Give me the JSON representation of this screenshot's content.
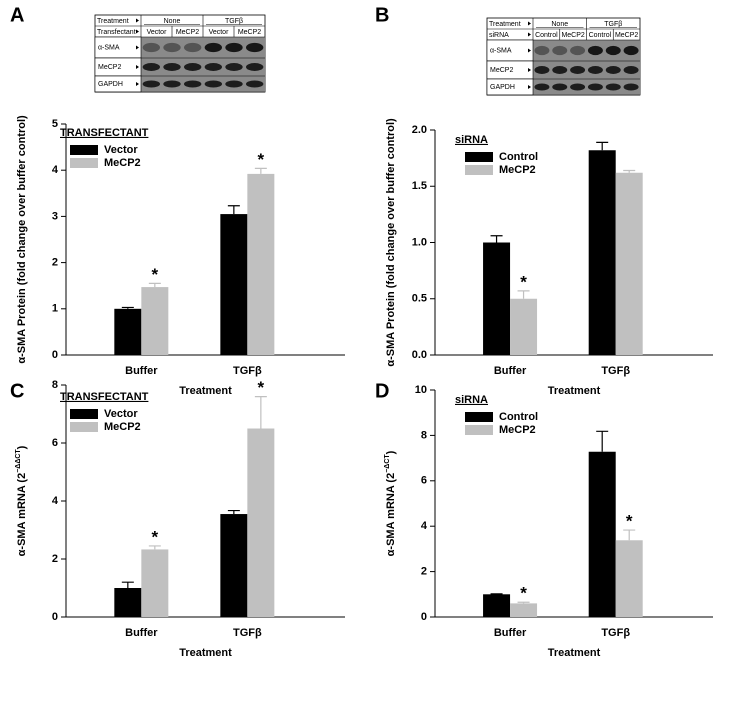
{
  "chart_data": [
    {
      "type": "bar",
      "panel": "A",
      "blot": {
        "header": [
          {
            "label": "Treatment",
            "groups": [
              "None",
              "TGFβ"
            ]
          },
          {
            "label": "Transfectant",
            "groups": [
              "Vector",
              "MeCP2",
              "Vector",
              "MeCP2"
            ]
          }
        ],
        "rows": [
          "α-SMA",
          "MeCP2",
          "GAPDH"
        ]
      },
      "ylabel": "α-SMA Protein (fold change over buffer control)",
      "xlabel": "Treatment",
      "legend_title": "TRANSFECTANT",
      "categories": [
        "Buffer",
        "TGFβ"
      ],
      "series": [
        {
          "name": "Vector",
          "color": "#000000",
          "values": [
            1.0,
            3.05
          ],
          "errors": [
            0.03,
            0.18
          ],
          "annotations": [
            null,
            null
          ]
        },
        {
          "name": "MeCP2",
          "color": "#c0c0c0",
          "values": [
            1.47,
            3.92
          ],
          "errors": [
            0.08,
            0.12
          ],
          "annotations": [
            "*",
            "*"
          ]
        }
      ],
      "ylim": [
        0,
        5
      ],
      "yticks": [
        0,
        1,
        2,
        3,
        4,
        5
      ]
    },
    {
      "type": "bar",
      "panel": "B",
      "blot": {
        "header": [
          {
            "label": "Treatment",
            "groups": [
              "None",
              "TGFβ"
            ]
          },
          {
            "label": "siRNA",
            "groups": [
              "Control",
              "MeCP2",
              "Control",
              "MeCP2"
            ]
          }
        ],
        "rows": [
          "α-SMA",
          "MeCP2",
          "GAPDH"
        ]
      },
      "ylabel": "α-SMA Protein (fold change over buffer control)",
      "xlabel": "Treatment",
      "legend_title": "siRNA",
      "categories": [
        "Buffer",
        "TGFβ"
      ],
      "series": [
        {
          "name": "Control",
          "color": "#000000",
          "values": [
            1.0,
            1.82
          ],
          "errors": [
            0.06,
            0.07
          ],
          "annotations": [
            null,
            null
          ]
        },
        {
          "name": "MeCP2",
          "color": "#c0c0c0",
          "values": [
            0.5,
            1.62
          ],
          "errors": [
            0.07,
            0.02
          ],
          "annotations": [
            "*",
            null
          ]
        }
      ],
      "ylim": [
        0,
        2
      ],
      "yticks": [
        {
          "value": 0,
          "label": "0.0"
        },
        0.5,
        {
          "value": 1,
          "label": "1.0"
        },
        1.5,
        {
          "value": 2,
          "label": "2.0"
        }
      ]
    },
    {
      "type": "bar",
      "panel": "C",
      "ylabel": "α-SMA mRNA (2",
      "ylabel_sup": "−ΔΔCT",
      "ylabel_end": ")",
      "xlabel": "Treatment",
      "legend_title": "TRANSFECTANT",
      "categories": [
        "Buffer",
        "TGFβ"
      ],
      "series": [
        {
          "name": "Vector",
          "color": "#000000",
          "values": [
            1.0,
            3.55
          ],
          "errors": [
            0.2,
            0.12
          ],
          "annotations": [
            null,
            null
          ]
        },
        {
          "name": "MeCP2",
          "color": "#c0c0c0",
          "values": [
            2.33,
            6.5
          ],
          "errors": [
            0.12,
            1.1
          ],
          "annotations": [
            "*",
            "*"
          ]
        }
      ],
      "ylim": [
        0,
        8
      ],
      "yticks": [
        0,
        2,
        4,
        6,
        8
      ]
    },
    {
      "type": "bar",
      "panel": "D",
      "ylabel": "α-SMA mRNA (2",
      "ylabel_sup": "−ΔCT",
      "ylabel_end": ")",
      "xlabel": "Treatment",
      "legend_title": "siRNA",
      "categories": [
        "Buffer",
        "TGFβ"
      ],
      "series": [
        {
          "name": "Control",
          "color": "#000000",
          "values": [
            1.0,
            7.28
          ],
          "errors": [
            0.02,
            0.9
          ],
          "annotations": [
            null,
            null
          ]
        },
        {
          "name": "MeCP2",
          "color": "#c0c0c0",
          "values": [
            0.6,
            3.38
          ],
          "errors": [
            0.05,
            0.45
          ],
          "annotations": [
            "*",
            "*"
          ]
        }
      ],
      "ylim": [
        0,
        10
      ],
      "yticks": [
        0,
        2,
        4,
        6,
        8,
        10
      ]
    }
  ]
}
